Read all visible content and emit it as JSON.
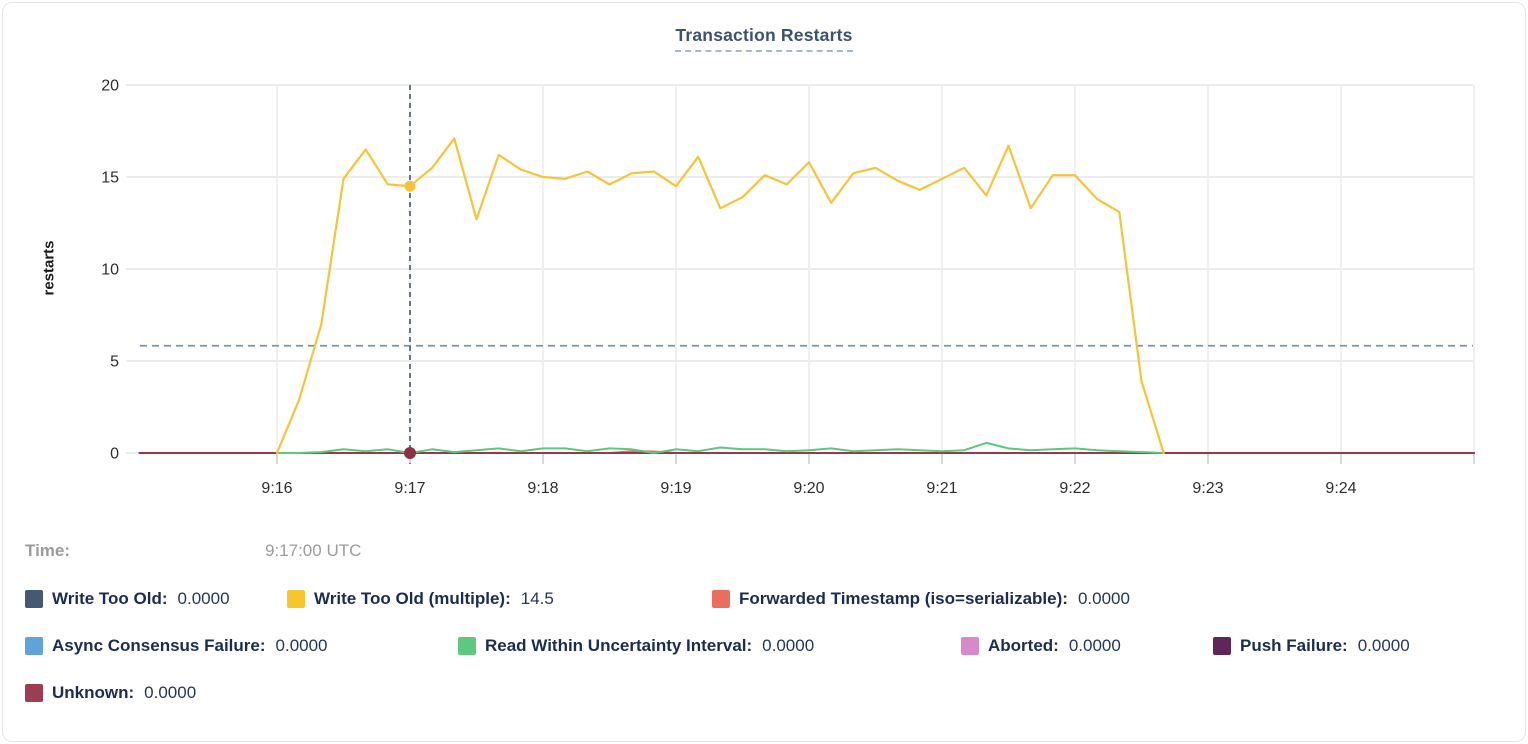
{
  "card": {
    "title": "Transaction Restarts"
  },
  "tooltip": {
    "time_label": "Time:",
    "time_value": "9:17:00 UTC"
  },
  "legend": {
    "rows": [
      [
        {
          "label": "Write Too Old:",
          "value": "0.0000",
          "color": "#475872"
        },
        {
          "label": "Write Too Old (multiple):",
          "value": "14.5",
          "color": "#f6c62f"
        },
        {
          "label": "Forwarded Timestamp (iso=serializable):",
          "value": "0.0000",
          "color": "#e96e5e"
        }
      ],
      [
        {
          "label": "Async Consensus Failure:",
          "value": "0.0000",
          "color": "#5fa3d8"
        },
        {
          "label": "Read Within Uncertainty Interval:",
          "value": "0.0000",
          "color": "#5dc87e"
        },
        {
          "label": "Aborted:",
          "value": "0.0000",
          "color": "#d689cb"
        },
        {
          "label": "Push Failure:",
          "value": "0.0000",
          "color": "#5f2758"
        }
      ],
      [
        {
          "label": "Unknown:",
          "value": "0.0000",
          "color": "#9c3d53"
        }
      ]
    ]
  },
  "chart_data": {
    "type": "line",
    "title": "Transaction Restarts",
    "ylabel": "restarts",
    "xlabel": "",
    "ylim": [
      0,
      20
    ],
    "y_ticks": [
      0,
      5,
      10,
      15,
      20
    ],
    "x_unit": "seconds since 9:16:00 UTC",
    "x_ticks": [
      {
        "t": 0,
        "label": "9:16"
      },
      {
        "t": 60,
        "label": "9:17"
      },
      {
        "t": 120,
        "label": "9:18"
      },
      {
        "t": 180,
        "label": "9:19"
      },
      {
        "t": 240,
        "label": "9:20"
      },
      {
        "t": 300,
        "label": "9:21"
      },
      {
        "t": 360,
        "label": "9:22"
      },
      {
        "t": 420,
        "label": "9:23"
      },
      {
        "t": 480,
        "label": "9:24"
      },
      {
        "t": 540,
        "label": ""
      }
    ],
    "grid": true,
    "legend_position": "bottom",
    "avg_line_value": 5.83,
    "sample_interval_s": 10,
    "crosshair": {
      "t": 60,
      "time_text": "9:17:00 UTC",
      "series": "Write Too Old (multiple)",
      "value": 14.5
    },
    "dots": [
      {
        "t": 60,
        "v": 14.5,
        "color": "#f7c337",
        "r": 5.5
      },
      {
        "t": 60,
        "v": 0,
        "color": "#8c3246",
        "r": 6
      }
    ],
    "series": [
      {
        "name": "Write Too Old",
        "color": "#475872",
        "flat": 0,
        "from": -62,
        "to": 540
      },
      {
        "name": "Async Consensus Failure",
        "color": "#5fa3d8",
        "flat": 0,
        "from": -62,
        "to": 540
      },
      {
        "name": "Aborted",
        "color": "#d689cb",
        "flat": 0,
        "from": -62,
        "to": 540
      },
      {
        "name": "Push Failure",
        "color": "#5f2758",
        "flat": 0,
        "from": -62,
        "to": 540
      },
      {
        "name": "Forwarded Timestamp (iso=serializable)",
        "color": "#e8695a",
        "points": [
          [
            -62,
            0
          ],
          [
            150,
            0
          ],
          [
            160,
            0.1
          ],
          [
            170,
            0.08
          ],
          [
            180,
            0
          ],
          [
            540,
            0
          ]
        ]
      },
      {
        "name": "Unknown",
        "color": "#97394e",
        "flat": 0,
        "from": -62,
        "to": 540
      },
      {
        "name": "Read Within Uncertainty Interval",
        "color": "#5fc67d",
        "start": 0,
        "step": 10,
        "values": [
          0,
          0,
          0.05,
          0.2,
          0.1,
          0.2,
          0,
          0.2,
          0.05,
          0.15,
          0.25,
          0.1,
          0.25,
          0.25,
          0.1,
          0.25,
          0.2,
          0,
          0.2,
          0.1,
          0.3,
          0.2,
          0.2,
          0.1,
          0.15,
          0.25,
          0.1,
          0.15,
          0.2,
          0.15,
          0.1,
          0.15,
          0.55,
          0.25,
          0.15,
          0.2,
          0.25,
          0.15,
          0.1,
          0.05,
          0
        ]
      },
      {
        "name": "Write Too Old (multiple)",
        "color": "#f7c337",
        "start": 0,
        "step": 10,
        "values": [
          0,
          2.9,
          7,
          14.9,
          16.5,
          14.6,
          14.5,
          15.5,
          17.1,
          12.7,
          16.2,
          15.4,
          15,
          14.9,
          15.3,
          14.6,
          15.2,
          15.3,
          14.5,
          16.1,
          13.3,
          13.9,
          15.1,
          14.6,
          15.8,
          13.6,
          15.2,
          15.5,
          14.8,
          14.3,
          14.9,
          15.5,
          14,
          16.7,
          13.3,
          15.1,
          15.1,
          13.8,
          13.1,
          3.9,
          0
        ]
      }
    ]
  }
}
